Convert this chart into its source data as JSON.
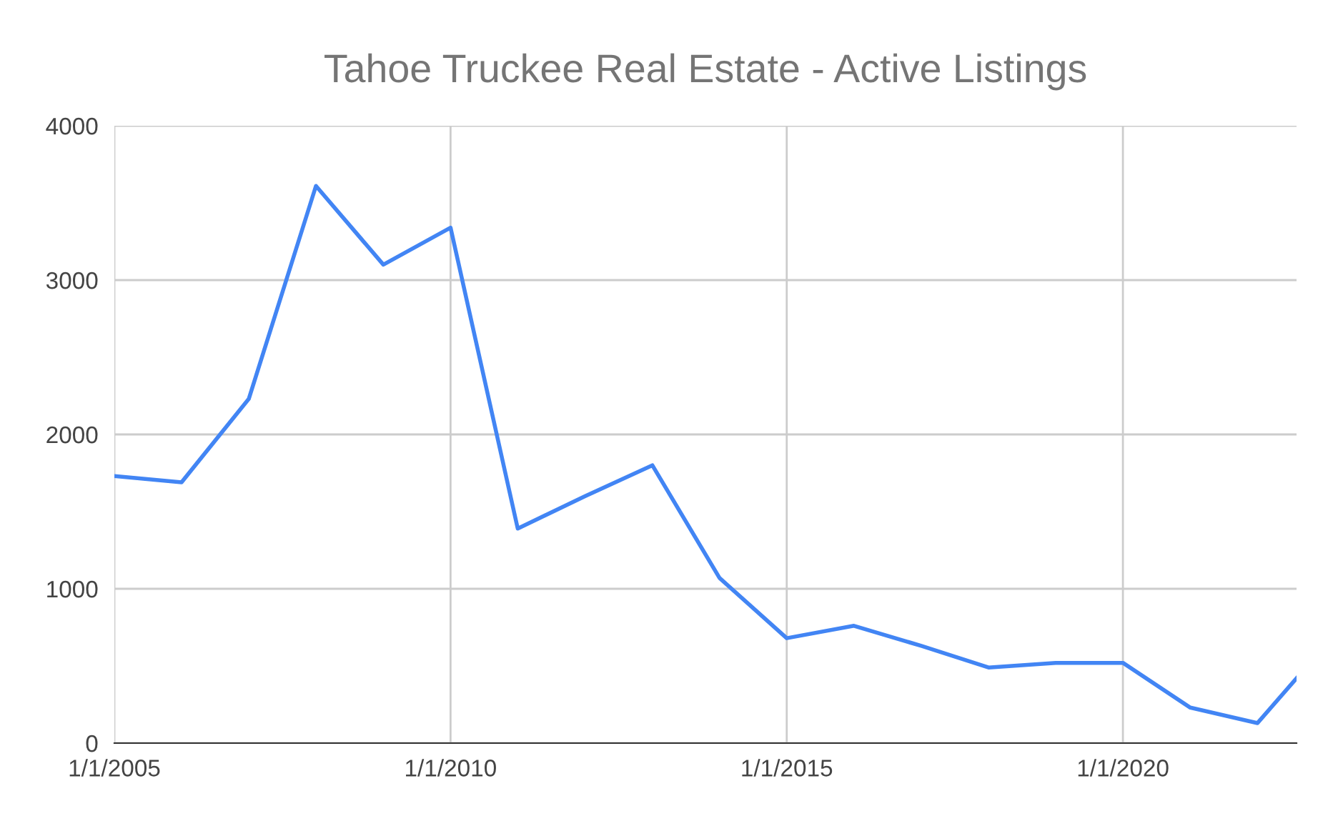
{
  "chart_data": {
    "type": "line",
    "title": "Tahoe Truckee Real Estate - Active Listings",
    "x": [
      "2005-01-01",
      "2006-01-01",
      "2007-01-01",
      "2008-01-01",
      "2009-01-01",
      "2010-01-01",
      "2011-01-01",
      "2012-01-01",
      "2013-01-01",
      "2014-01-01",
      "2015-01-01",
      "2016-01-01",
      "2017-01-01",
      "2018-01-01",
      "2019-01-01",
      "2020-01-01",
      "2021-01-01",
      "2022-01-01",
      "2022-08-01"
    ],
    "series": [
      {
        "color": "#4285f4",
        "values": [
          1730,
          1690,
          2230,
          3610,
          3100,
          3340,
          1390,
          1600,
          1800,
          1070,
          680,
          760,
          630,
          490,
          520,
          520,
          230,
          130,
          420
        ]
      }
    ],
    "xlim": [
      "2005-01-01",
      "2022-08-01"
    ],
    "xticks": [
      {
        "value": "2005-01-01",
        "label": "1/1/2005"
      },
      {
        "value": "2010-01-01",
        "label": "1/1/2010"
      },
      {
        "value": "2015-01-01",
        "label": "1/1/2015"
      },
      {
        "value": "2020-01-01",
        "label": "1/1/2020"
      }
    ],
    "ylim": [
      0,
      4000
    ],
    "yticks": [
      0,
      1000,
      2000,
      3000,
      4000
    ],
    "grid": true,
    "legend": false,
    "marker": "none",
    "line_style": "solid"
  }
}
